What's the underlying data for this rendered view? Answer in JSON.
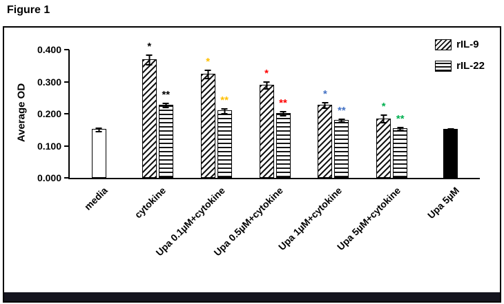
{
  "figure_label": "Figure 1",
  "legend": [
    {
      "label": "rIL-9",
      "pattern": "diagonal"
    },
    {
      "label": "rIL-22",
      "pattern": "horizontal"
    }
  ],
  "colors": {
    "footer_bar": "#15151f",
    "axis": "#000000",
    "sig_black": "#000000",
    "sig_orange": "#FFC000",
    "sig_red": "#FF0000",
    "sig_blue": "#4472C4",
    "sig_green": "#00B050"
  },
  "chart_data": {
    "type": "bar",
    "title": "",
    "xlabel": "",
    "ylabel": "Average OD",
    "ylim": [
      0,
      0.4
    ],
    "yticks": [
      "0.000",
      "0.100",
      "0.200",
      "0.300",
      "0.400"
    ],
    "grid": false,
    "legend_position": "top-right",
    "categories": [
      "media",
      "cytokine",
      "Upa 0.1µM+cytokine",
      "Upa 0.5µM+cytokine",
      "Upa 1µM+cytokine",
      "Upa 5µM+cytokine",
      "Upa 5µM"
    ],
    "series_names": [
      "rIL-9",
      "rIL-22"
    ],
    "groups": [
      {
        "category": "media",
        "bars": [
          {
            "series": "media",
            "pattern": "white",
            "value": 0.152,
            "err": 0.007
          }
        ]
      },
      {
        "category": "cytokine",
        "bars": [
          {
            "series": "rIL-9",
            "pattern": "diagonal",
            "value": 0.37,
            "err": 0.018,
            "sig": "*",
            "sig_color": "#000000"
          },
          {
            "series": "rIL-22",
            "pattern": "horizontal",
            "value": 0.228,
            "err": 0.008,
            "sig": "**",
            "sig_color": "#000000"
          }
        ]
      },
      {
        "category": "Upa 0.1µM+cytokine",
        "bars": [
          {
            "series": "rIL-9",
            "pattern": "diagonal",
            "value": 0.325,
            "err": 0.015,
            "sig": "*",
            "sig_color": "#FFC000"
          },
          {
            "series": "rIL-22",
            "pattern": "horizontal",
            "value": 0.21,
            "err": 0.01,
            "sig": "**",
            "sig_color": "#FFC000"
          }
        ]
      },
      {
        "category": "Upa 0.5µM+cytokine",
        "bars": [
          {
            "series": "rIL-9",
            "pattern": "diagonal",
            "value": 0.291,
            "err": 0.013,
            "sig": "*",
            "sig_color": "#FF0000"
          },
          {
            "series": "rIL-22",
            "pattern": "horizontal",
            "value": 0.202,
            "err": 0.008,
            "sig": "**",
            "sig_color": "#FF0000"
          }
        ]
      },
      {
        "category": "Upa 1µM+cytokine",
        "bars": [
          {
            "series": "rIL-9",
            "pattern": "diagonal",
            "value": 0.228,
            "err": 0.01,
            "sig": "*",
            "sig_color": "#4472C4"
          },
          {
            "series": "rIL-22",
            "pattern": "horizontal",
            "value": 0.181,
            "err": 0.007,
            "sig": "**",
            "sig_color": "#4472C4"
          }
        ]
      },
      {
        "category": "Upa 5µM+cytokine",
        "bars": [
          {
            "series": "rIL-9",
            "pattern": "diagonal",
            "value": 0.186,
            "err": 0.013,
            "sig": "*",
            "sig_color": "#00B050"
          },
          {
            "series": "rIL-22",
            "pattern": "horizontal",
            "value": 0.155,
            "err": 0.006,
            "sig": "**",
            "sig_color": "#00B050"
          }
        ]
      },
      {
        "category": "Upa 5µM",
        "bars": [
          {
            "series": "Upa 5µM",
            "pattern": "black",
            "value": 0.152,
            "err": 0.006
          }
        ]
      }
    ]
  }
}
